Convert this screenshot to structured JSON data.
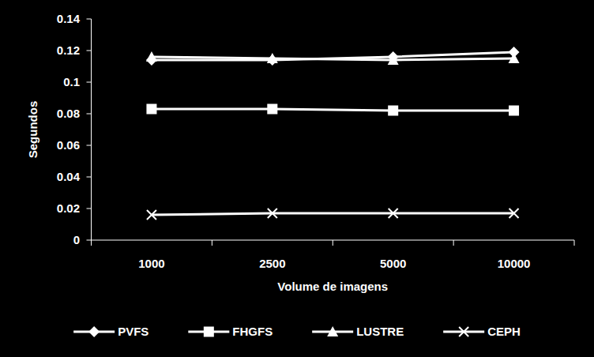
{
  "chart_data": {
    "type": "line",
    "x_label": "Volume de imagens",
    "y_label": "Segundos",
    "categories": [
      "1000",
      "2500",
      "5000",
      "10000"
    ],
    "series": [
      {
        "name": "PVFS",
        "color": "#ffffff",
        "marker": "diamond",
        "values": [
          0.114,
          0.114,
          0.116,
          0.119
        ]
      },
      {
        "name": "FHGFS",
        "color": "#ffffff",
        "marker": "square",
        "values": [
          0.083,
          0.083,
          0.082,
          0.082
        ]
      },
      {
        "name": "LUSTRE",
        "color": "#ffffff",
        "marker": "triangle",
        "values": [
          0.116,
          0.115,
          0.114,
          0.115
        ]
      },
      {
        "name": "CEPH",
        "color": "#ffffff",
        "marker": "x",
        "values": [
          0.016,
          0.017,
          0.017,
          0.017
        ]
      }
    ],
    "ylim": [
      0,
      0.14
    ],
    "yticks": [
      0,
      0.02,
      0.04,
      0.06,
      0.08,
      0.1,
      0.12,
      0.14
    ],
    "grid": false,
    "legend": "bottom"
  }
}
